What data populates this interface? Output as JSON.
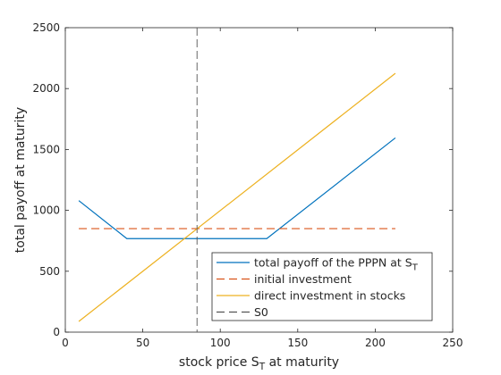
{
  "chart_data": {
    "type": "line",
    "title": "",
    "xlabel": "stock price S",
    "xlabel_sub": "T",
    "xlabel_suffix": " at maturity",
    "ylabel": "total payoff at maturity",
    "xlim": [
      0,
      250
    ],
    "ylim": [
      0,
      2500
    ],
    "xticks": [
      0,
      50,
      100,
      150,
      200,
      250
    ],
    "yticks": [
      0,
      500,
      1000,
      1500,
      2000,
      2500
    ],
    "grid": false,
    "legend_position": "bottom-right",
    "series": [
      {
        "name": "total payoff of the PPPN at S",
        "name_sub": "T",
        "style": "solid",
        "color": "#0072BD",
        "x": [
          8.7,
          39.7,
          130,
          213
        ],
        "y": [
          1080,
          768,
          768,
          1595
        ]
      },
      {
        "name": "initial investment",
        "style": "dashed",
        "color": "#D95319",
        "x": [
          8.7,
          213
        ],
        "y": [
          850,
          850
        ]
      },
      {
        "name": "direct investment in stocks",
        "style": "solid",
        "color": "#EDB120",
        "x": [
          8.7,
          213
        ],
        "y": [
          88,
          2125
        ]
      },
      {
        "name": "S0",
        "style": "dashed",
        "color": "#555555",
        "vertical_x": 85
      }
    ]
  }
}
